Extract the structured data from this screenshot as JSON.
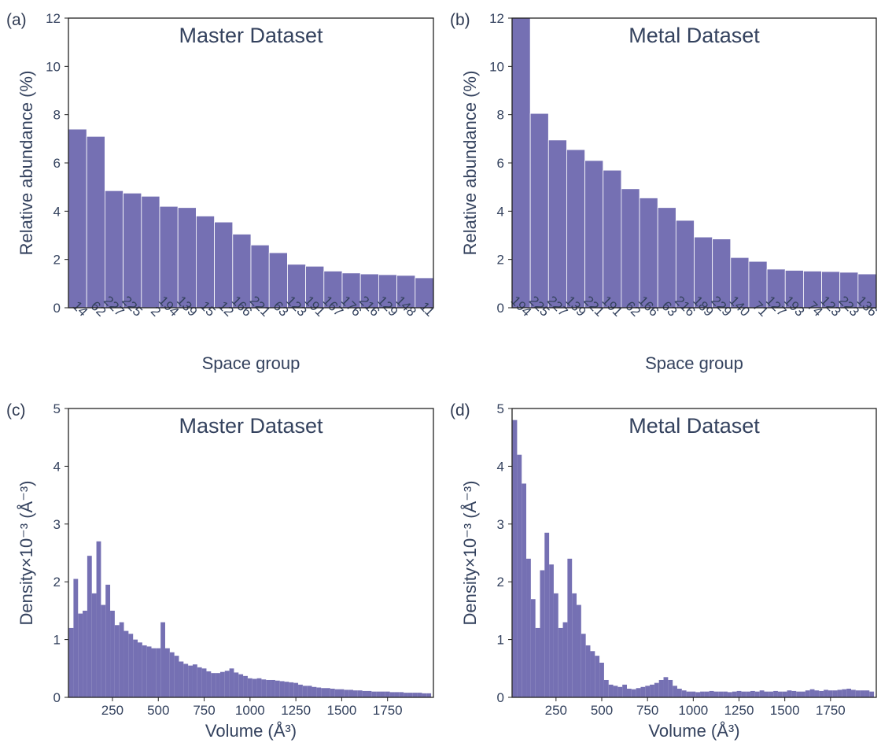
{
  "colors": {
    "bar": "#7570b3",
    "bar_edge": "#ffffff",
    "text": "#34425e",
    "frame": "#222222"
  },
  "chart_data": [
    {
      "id": "a",
      "panel_label": "(a)",
      "type": "bar",
      "title": "Master Dataset",
      "xlabel": "Space group",
      "ylabel": "Relative abundance (%)",
      "ylim": [
        0,
        12
      ],
      "yticks": [
        0,
        2,
        4,
        6,
        8,
        10,
        12
      ],
      "grid": false,
      "categories": [
        "14",
        "62",
        "227",
        "225",
        "2",
        "194",
        "139",
        "15",
        "12",
        "166",
        "221",
        "63",
        "123",
        "191",
        "167",
        "176",
        "216",
        "129",
        "148",
        "11"
      ],
      "values": [
        7.4,
        7.1,
        4.85,
        4.75,
        4.62,
        4.2,
        4.15,
        3.8,
        3.55,
        3.05,
        2.6,
        2.28,
        1.8,
        1.72,
        1.52,
        1.44,
        1.4,
        1.37,
        1.34,
        1.24
      ]
    },
    {
      "id": "b",
      "panel_label": "(b)",
      "type": "bar",
      "title": "Metal Dataset",
      "xlabel": "Space group",
      "ylabel": "Relative abundance (%)",
      "ylim": [
        0,
        12
      ],
      "yticks": [
        0,
        2,
        4,
        6,
        8,
        10,
        12
      ],
      "grid": false,
      "categories": [
        "194",
        "225",
        "227",
        "139",
        "221",
        "191",
        "62",
        "166",
        "63",
        "216",
        "189",
        "229",
        "140",
        "71",
        "127",
        "193",
        "74",
        "123",
        "223",
        "136"
      ],
      "values": [
        12.5,
        8.05,
        6.95,
        6.55,
        6.1,
        5.7,
        4.93,
        4.55,
        4.15,
        3.62,
        2.93,
        2.85,
        2.08,
        1.92,
        1.6,
        1.55,
        1.52,
        1.5,
        1.47,
        1.4
      ]
    },
    {
      "id": "c",
      "panel_label": "(c)",
      "type": "bar",
      "title": "Master Dataset",
      "xlabel": "Volume (Å³)",
      "ylabel": "Density×10⁻³ (Å⁻³)",
      "xlim": [
        10,
        2000
      ],
      "ylim": [
        0,
        5
      ],
      "xticks": [
        250,
        500,
        750,
        1000,
        1250,
        1500,
        1750
      ],
      "yticks": [
        0,
        1,
        2,
        3,
        4,
        5
      ],
      "grid": false,
      "x": [
        25,
        50,
        75,
        100,
        125,
        150,
        175,
        200,
        225,
        250,
        275,
        300,
        325,
        350,
        375,
        400,
        425,
        450,
        475,
        500,
        525,
        550,
        575,
        600,
        625,
        650,
        675,
        700,
        725,
        750,
        775,
        800,
        825,
        850,
        875,
        900,
        925,
        950,
        975,
        1000,
        1025,
        1050,
        1075,
        1100,
        1125,
        1150,
        1175,
        1200,
        1225,
        1250,
        1275,
        1300,
        1325,
        1350,
        1375,
        1400,
        1425,
        1450,
        1475,
        1500,
        1525,
        1550,
        1575,
        1600,
        1625,
        1650,
        1675,
        1700,
        1725,
        1750,
        1775,
        1800,
        1825,
        1850,
        1875,
        1900,
        1925,
        1950,
        1975
      ],
      "values": [
        1.2,
        2.05,
        1.45,
        1.5,
        2.45,
        1.8,
        2.7,
        1.6,
        1.95,
        1.5,
        1.25,
        1.3,
        1.15,
        1.1,
        1.0,
        0.95,
        0.9,
        0.88,
        0.85,
        0.85,
        1.3,
        0.85,
        0.78,
        0.72,
        0.62,
        0.58,
        0.55,
        0.57,
        0.52,
        0.5,
        0.45,
        0.42,
        0.42,
        0.44,
        0.46,
        0.5,
        0.43,
        0.4,
        0.37,
        0.33,
        0.32,
        0.33,
        0.31,
        0.3,
        0.3,
        0.29,
        0.28,
        0.27,
        0.26,
        0.25,
        0.22,
        0.2,
        0.2,
        0.18,
        0.17,
        0.16,
        0.16,
        0.15,
        0.14,
        0.14,
        0.13,
        0.13,
        0.12,
        0.12,
        0.11,
        0.11,
        0.1,
        0.1,
        0.1,
        0.1,
        0.09,
        0.09,
        0.09,
        0.08,
        0.08,
        0.08,
        0.08,
        0.07,
        0.07
      ]
    },
    {
      "id": "d",
      "panel_label": "(d)",
      "type": "bar",
      "title": "Metal Dataset",
      "xlabel": "Volume (Å³)",
      "ylabel": "Density×10⁻³ (Å⁻³)",
      "xlim": [
        10,
        2000
      ],
      "ylim": [
        0,
        5
      ],
      "xticks": [
        250,
        500,
        750,
        1000,
        1250,
        1500,
        1750
      ],
      "yticks": [
        0,
        1,
        2,
        3,
        4,
        5
      ],
      "grid": false,
      "x": [
        25,
        50,
        75,
        100,
        125,
        150,
        175,
        200,
        225,
        250,
        275,
        300,
        325,
        350,
        375,
        400,
        425,
        450,
        475,
        500,
        525,
        550,
        575,
        600,
        625,
        650,
        675,
        700,
        725,
        750,
        775,
        800,
        825,
        850,
        875,
        900,
        925,
        950,
        975,
        1000,
        1025,
        1050,
        1075,
        1100,
        1125,
        1150,
        1175,
        1200,
        1225,
        1250,
        1275,
        1300,
        1325,
        1350,
        1375,
        1400,
        1425,
        1450,
        1475,
        1500,
        1525,
        1550,
        1575,
        1600,
        1625,
        1650,
        1675,
        1700,
        1725,
        1750,
        1775,
        1800,
        1825,
        1850,
        1875,
        1900,
        1925,
        1950,
        1975
      ],
      "values": [
        4.8,
        4.2,
        3.7,
        2.4,
        1.7,
        1.2,
        2.2,
        2.85,
        2.3,
        1.8,
        1.2,
        1.3,
        2.4,
        1.8,
        1.6,
        1.1,
        0.9,
        0.8,
        0.72,
        0.6,
        0.3,
        0.22,
        0.2,
        0.18,
        0.22,
        0.15,
        0.14,
        0.16,
        0.18,
        0.2,
        0.22,
        0.25,
        0.3,
        0.35,
        0.3,
        0.2,
        0.15,
        0.12,
        0.1,
        0.1,
        0.09,
        0.1,
        0.1,
        0.11,
        0.1,
        0.1,
        0.1,
        0.09,
        0.1,
        0.11,
        0.1,
        0.1,
        0.11,
        0.1,
        0.12,
        0.1,
        0.1,
        0.11,
        0.1,
        0.1,
        0.12,
        0.11,
        0.1,
        0.1,
        0.12,
        0.14,
        0.12,
        0.11,
        0.13,
        0.12,
        0.12,
        0.13,
        0.14,
        0.15,
        0.13,
        0.12,
        0.12,
        0.12,
        0.1
      ]
    }
  ]
}
